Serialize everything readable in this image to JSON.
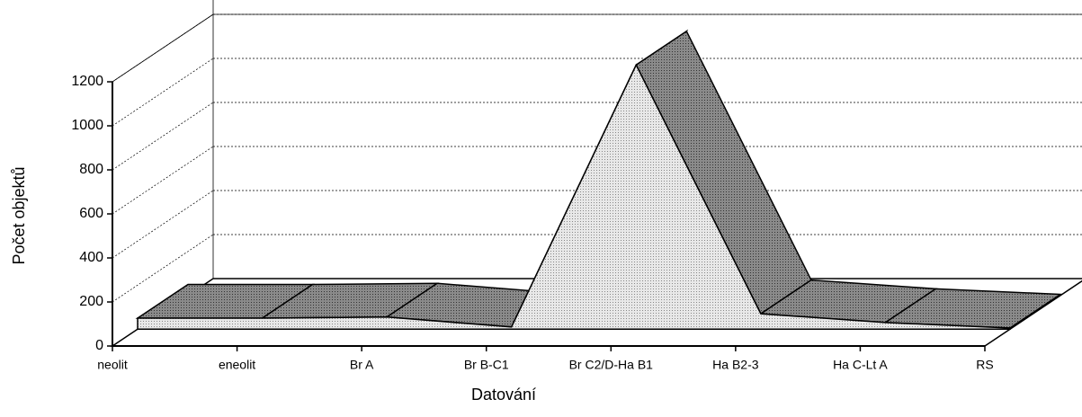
{
  "chart_data": {
    "type": "area3d",
    "x_label": "Datování",
    "y_label": "Počet objektů",
    "categories": [
      "neolit",
      "eneolit",
      "Br A",
      "Br B-C1",
      "Br C2/D-Ha B1",
      "Ha B2-3",
      "Ha C-Lt A",
      "RS"
    ],
    "values": [
      50,
      50,
      55,
      10,
      1200,
      70,
      30,
      5
    ],
    "ylim": [
      0,
      1200
    ],
    "yticks": [
      0,
      200,
      400,
      600,
      800,
      1000,
      1200
    ],
    "grid": true
  }
}
